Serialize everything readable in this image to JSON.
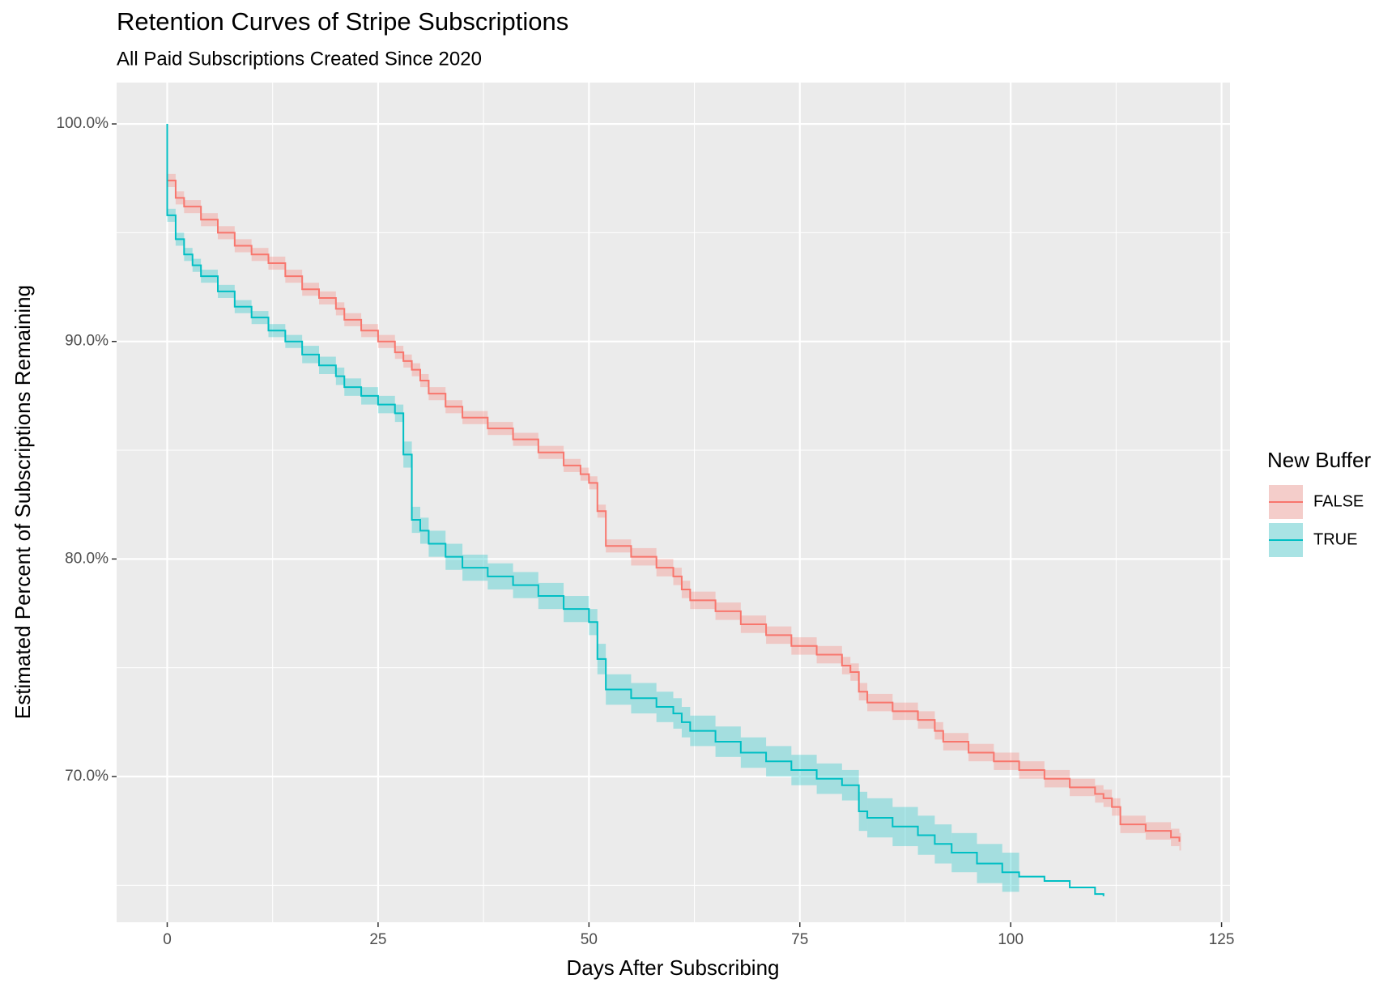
{
  "chart_data": {
    "type": "step",
    "title": "Retention Curves of Stripe Subscriptions",
    "subtitle": "All Paid Subscriptions Created Since 2020",
    "x_label": "Days After Subscribing",
    "y_label": "Estimated Percent of Subscriptions Remaining",
    "legend_title": "New Buffer",
    "xlim": [
      -6,
      126
    ],
    "ylim": [
      63.3,
      101.9
    ],
    "xticks": [
      0,
      25,
      50,
      75,
      100,
      125
    ],
    "x_minor_ticks": [
      12.5,
      37.5,
      62.5,
      87.5,
      112.5
    ],
    "yticks": [
      {
        "value": 70,
        "label": "70.0%"
      },
      {
        "value": 80,
        "label": "80.0%"
      },
      {
        "value": 90,
        "label": "90.0%"
      },
      {
        "value": 100,
        "label": "100.0%"
      }
    ],
    "y_minor_ticks": [
      65,
      75,
      85,
      95
    ],
    "grid": true,
    "series": [
      {
        "name": "FALSE",
        "color": "#F8766D",
        "x": [
          0,
          0,
          1,
          2,
          4,
          6,
          8,
          10,
          12,
          14,
          16,
          18,
          20,
          21,
          23,
          25,
          27,
          28,
          29,
          30,
          31,
          33,
          35,
          38,
          41,
          44,
          47,
          49,
          50,
          51,
          52,
          55,
          58,
          60,
          61,
          62,
          65,
          68,
          71,
          74,
          77,
          80,
          81,
          82,
          83,
          86,
          89,
          91,
          92,
          95,
          98,
          101,
          104,
          107,
          110,
          111,
          112,
          113,
          116,
          119,
          120
        ],
        "values": [
          100,
          97.4,
          96.6,
          96.2,
          95.6,
          95.0,
          94.4,
          94.0,
          93.6,
          93.0,
          92.4,
          92.0,
          91.5,
          91.0,
          90.5,
          90.0,
          89.5,
          89.1,
          88.7,
          88.2,
          87.6,
          87.0,
          86.5,
          86.0,
          85.5,
          84.9,
          84.3,
          83.9,
          83.5,
          82.2,
          80.6,
          80.1,
          79.6,
          79.2,
          78.6,
          78.1,
          77.6,
          77.0,
          76.5,
          76.0,
          75.6,
          75.1,
          74.8,
          73.9,
          73.4,
          73.0,
          72.6,
          72.1,
          71.6,
          71.1,
          70.7,
          70.3,
          69.9,
          69.5,
          69.2,
          69.0,
          68.6,
          67.8,
          67.5,
          67.2,
          67.0
        ],
        "lower": [
          null,
          97.1,
          96.3,
          95.9,
          95.3,
          94.7,
          94.1,
          93.7,
          93.3,
          92.7,
          92.1,
          91.7,
          91.2,
          90.7,
          90.2,
          89.7,
          89.2,
          88.8,
          88.4,
          87.9,
          87.3,
          86.7,
          86.2,
          85.7,
          85.2,
          84.6,
          84.0,
          83.6,
          83.2,
          81.9,
          80.3,
          79.7,
          79.2,
          78.8,
          78.2,
          77.7,
          77.2,
          76.6,
          76.1,
          75.6,
          75.2,
          74.7,
          74.4,
          73.5,
          73.0,
          72.6,
          72.2,
          71.7,
          71.2,
          70.7,
          70.3,
          69.9,
          69.5,
          69.1,
          68.8,
          68.6,
          68.2,
          67.4,
          67.1,
          66.8,
          66.6
        ],
        "upper": [
          null,
          97.7,
          96.9,
          96.5,
          95.9,
          95.3,
          94.7,
          94.3,
          93.9,
          93.3,
          92.7,
          92.3,
          91.8,
          91.3,
          90.8,
          90.3,
          89.8,
          89.4,
          89.0,
          88.5,
          87.9,
          87.3,
          86.8,
          86.3,
          85.8,
          85.2,
          84.6,
          84.2,
          83.8,
          82.5,
          80.9,
          80.5,
          80.0,
          79.6,
          79.0,
          78.5,
          78.0,
          77.4,
          76.9,
          76.4,
          76.0,
          75.5,
          75.2,
          74.3,
          73.8,
          73.4,
          73.0,
          72.5,
          72.0,
          71.5,
          71.1,
          70.7,
          70.3,
          69.9,
          69.6,
          69.4,
          69.0,
          68.2,
          67.9,
          67.6,
          67.4
        ]
      },
      {
        "name": "TRUE",
        "color": "#00BFC4",
        "x": [
          0,
          0,
          1,
          2,
          3,
          4,
          6,
          8,
          10,
          12,
          14,
          16,
          18,
          20,
          21,
          23,
          25,
          27,
          28,
          29,
          30,
          31,
          33,
          35,
          38,
          41,
          44,
          47,
          50,
          51,
          52,
          55,
          58,
          60,
          61,
          62,
          65,
          68,
          71,
          74,
          77,
          80,
          82,
          83,
          86,
          89,
          91,
          93,
          96,
          99,
          101,
          104,
          107,
          110,
          111
        ],
        "values": [
          100,
          95.8,
          94.7,
          94.0,
          93.5,
          93.0,
          92.3,
          91.6,
          91.1,
          90.5,
          90.0,
          89.4,
          88.9,
          88.4,
          87.9,
          87.5,
          87.1,
          86.7,
          84.8,
          81.8,
          81.3,
          80.7,
          80.1,
          79.6,
          79.2,
          78.8,
          78.3,
          77.7,
          77.1,
          75.4,
          74.0,
          73.6,
          73.2,
          72.9,
          72.5,
          72.1,
          71.6,
          71.1,
          70.7,
          70.3,
          69.9,
          69.6,
          68.4,
          68.1,
          67.7,
          67.3,
          66.9,
          66.5,
          66.0,
          65.6,
          65.4,
          65.2,
          64.9,
          64.6,
          64.5
        ],
        "lower": [
          null,
          95.5,
          94.4,
          93.7,
          93.2,
          92.7,
          92.0,
          91.3,
          90.8,
          90.2,
          89.7,
          89.0,
          88.5,
          88.0,
          87.5,
          87.1,
          86.7,
          86.3,
          84.2,
          81.2,
          80.7,
          80.1,
          79.5,
          79.0,
          78.6,
          78.2,
          77.7,
          77.1,
          76.5,
          74.7,
          73.3,
          72.9,
          72.5,
          72.2,
          71.8,
          71.4,
          70.9,
          70.4,
          70.0,
          69.6,
          69.2,
          68.9,
          67.5,
          67.2,
          66.8,
          66.4,
          66.0,
          65.6,
          65.1,
          64.7,
          null,
          null,
          null,
          null,
          null
        ],
        "upper": [
          null,
          96.1,
          95.0,
          94.3,
          93.8,
          93.3,
          92.6,
          91.9,
          91.4,
          90.8,
          90.3,
          89.8,
          89.3,
          88.8,
          88.3,
          87.9,
          87.5,
          87.1,
          85.4,
          82.4,
          81.9,
          81.3,
          80.7,
          80.2,
          79.8,
          79.4,
          78.9,
          78.3,
          77.7,
          76.1,
          74.7,
          74.3,
          73.9,
          73.6,
          73.2,
          72.8,
          72.3,
          71.8,
          71.4,
          71.0,
          70.6,
          70.3,
          69.3,
          69.0,
          68.6,
          68.2,
          67.8,
          67.4,
          66.9,
          66.5,
          null,
          null,
          null,
          null,
          null
        ]
      }
    ]
  }
}
